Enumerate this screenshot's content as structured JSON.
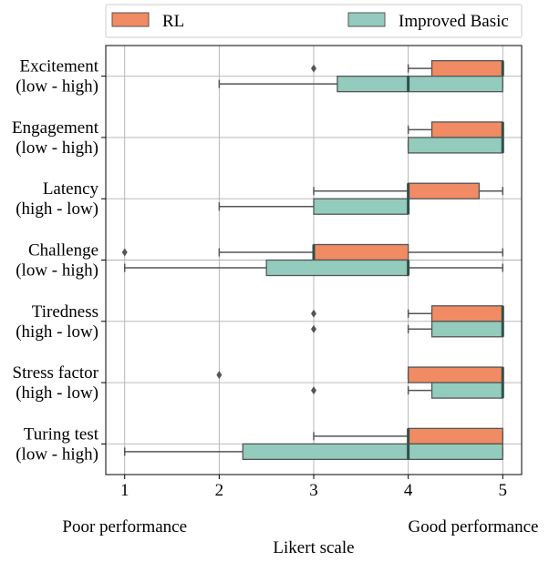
{
  "chart_data": {
    "type": "boxplot",
    "orientation": "horizontal",
    "xlabel": "Likert scale",
    "xlim": [
      0.8,
      5.2
    ],
    "xticks": [
      1,
      2,
      3,
      4,
      5
    ],
    "grid": true,
    "legend_placement": "top",
    "axis_annotations": {
      "left": "Poor performance",
      "right": "Good performance"
    },
    "categories": [
      [
        "Excitement",
        "(low - high)"
      ],
      [
        "Engagement",
        "(low - high)"
      ],
      [
        "Latency",
        "(high - low)"
      ],
      [
        "Challenge",
        "(low - high)"
      ],
      [
        "Tiredness",
        "(high - low)"
      ],
      [
        "Stress factor",
        "(high - low)"
      ],
      [
        "Turing test",
        "(low - high)"
      ]
    ],
    "series": [
      {
        "name": "RL",
        "color": "#f08b64",
        "boxes": [
          {
            "whislo": 4,
            "q1": 4.25,
            "med": 5,
            "q3": 5,
            "whishi": 5,
            "fliers": [
              3
            ]
          },
          {
            "whislo": 4,
            "q1": 4.25,
            "med": 5,
            "q3": 5,
            "whishi": 5,
            "fliers": []
          },
          {
            "whislo": 3,
            "q1": 4,
            "med": 4,
            "q3": 4.75,
            "whishi": 5,
            "fliers": []
          },
          {
            "whislo": 2,
            "q1": 3,
            "med": 3,
            "q3": 4,
            "whishi": 5,
            "fliers": [
              1
            ]
          },
          {
            "whislo": 4,
            "q1": 4.25,
            "med": 5,
            "q3": 5,
            "whishi": 5,
            "fliers": [
              3
            ]
          },
          {
            "whislo": 4,
            "q1": 4,
            "med": 5,
            "q3": 5,
            "whishi": 5,
            "fliers": [
              2
            ]
          },
          {
            "whislo": 3,
            "q1": 4,
            "med": 4,
            "q3": 5,
            "whishi": 5,
            "fliers": []
          }
        ]
      },
      {
        "name": "Improved Basic",
        "color": "#93cbbd",
        "boxes": [
          {
            "whislo": 2,
            "q1": 3.25,
            "med": 4,
            "q3": 5,
            "whishi": 5,
            "fliers": []
          },
          {
            "whislo": 4,
            "q1": 4,
            "med": 5,
            "q3": 5,
            "whishi": 5,
            "fliers": []
          },
          {
            "whislo": 2,
            "q1": 3,
            "med": 4,
            "q3": 4,
            "whishi": 4,
            "fliers": []
          },
          {
            "whislo": 1,
            "q1": 2.5,
            "med": 4,
            "q3": 4,
            "whishi": 5,
            "fliers": []
          },
          {
            "whislo": 4,
            "q1": 4.25,
            "med": 5,
            "q3": 5,
            "whishi": 5,
            "fliers": [
              3
            ]
          },
          {
            "whislo": 4,
            "q1": 4.25,
            "med": 5,
            "q3": 5,
            "whishi": 5,
            "fliers": [
              3
            ]
          },
          {
            "whislo": 1,
            "q1": 2.25,
            "med": 4,
            "q3": 5,
            "whishi": 5,
            "fliers": []
          }
        ]
      }
    ]
  }
}
